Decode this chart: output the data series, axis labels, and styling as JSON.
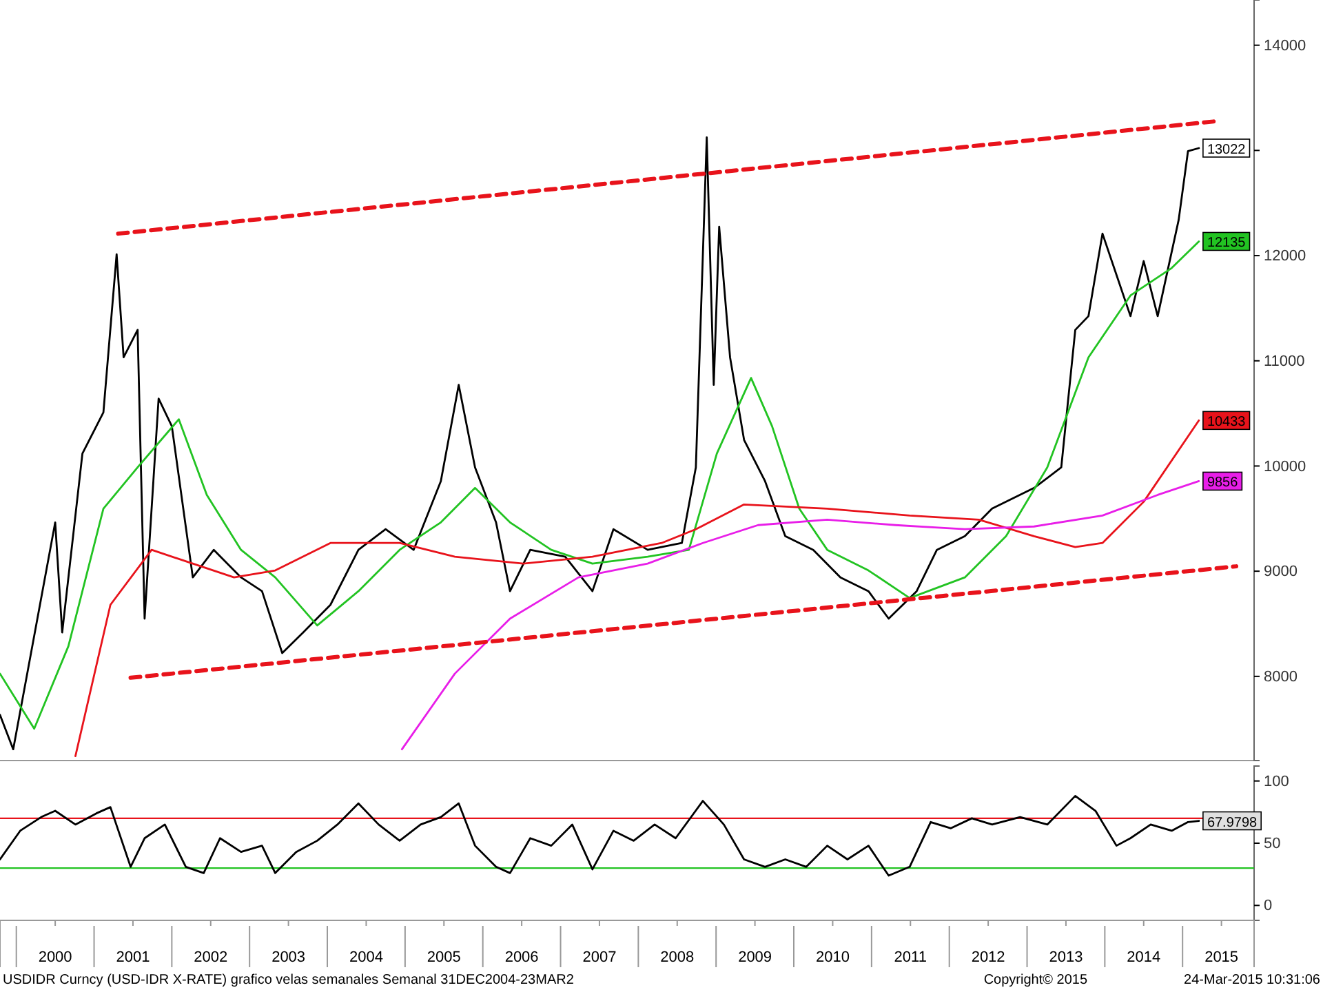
{
  "chart_data": [
    {
      "type": "line",
      "xlim": [
        1999.79,
        2015.92
      ],
      "ylim": [
        7200,
        14430
      ],
      "yticks": [
        8000,
        9000,
        10000,
        11000,
        12000,
        {
          "value": 13000,
          "label": null
        },
        14000
      ],
      "series": [
        {
          "color": "#000000",
          "x": [
            1999.79,
            1999.96,
            2000.5,
            2000.59,
            2000.85,
            2001.12,
            2001.29,
            2001.38,
            2001.56,
            2001.65,
            2001.83,
            2002.0,
            2002.27,
            2002.54,
            2002.89,
            2003.16,
            2003.42,
            2003.69,
            2004.04,
            2004.4,
            2004.75,
            2005.11,
            2005.46,
            2005.69,
            2005.9,
            2006.17,
            2006.35,
            2006.61,
            2007.06,
            2007.41,
            2007.68,
            2008.12,
            2008.56,
            2008.74,
            2008.88,
            2008.97,
            2009.04,
            2009.18,
            2009.36,
            2009.63,
            2009.89,
            2010.25,
            2010.6,
            2010.96,
            2011.22,
            2011.58,
            2011.84,
            2012.2,
            2012.55,
            2013.09,
            2013.44,
            2013.62,
            2013.79,
            2013.97,
            2014.15,
            2014.33,
            2014.5,
            2014.68,
            2014.95,
            2015.07,
            2015.21
          ],
          "values": [
            7634,
            7307,
            9464,
            8418,
            10118,
            10510,
            12013,
            11033,
            11294,
            8549,
            10640,
            10379,
            8941,
            9203,
            8941,
            8810,
            8222,
            8418,
            8680,
            9203,
            9399,
            9203,
            9856,
            10771,
            9987,
            9464,
            8810,
            9203,
            9137,
            8810,
            9399,
            9203,
            9268,
            9987,
            13124,
            10771,
            12275,
            11033,
            10248,
            9856,
            9333,
            9203,
            8941,
            8810,
            8549,
            8810,
            9203,
            9333,
            9595,
            9791,
            9987,
            11294,
            11425,
            12209,
            11817,
            11425,
            11948,
            11425,
            12340,
            12994,
            13022
          ],
          "value_labels": [
            null,
            null,
            null,
            null,
            null,
            null,
            null,
            null,
            null,
            null,
            null,
            null,
            null,
            null,
            null,
            null,
            null,
            null,
            null,
            null,
            null,
            null,
            null,
            null,
            null,
            null,
            null,
            null,
            null,
            null,
            null,
            null,
            null,
            null,
            null,
            null,
            null,
            null,
            null,
            null,
            null,
            null,
            null,
            null,
            null,
            null,
            null,
            null,
            null,
            null,
            null,
            null,
            null,
            null,
            null,
            null,
            null,
            null,
            null,
            null,
            "13022"
          ]
        },
        {
          "color": "#22c322",
          "x": [
            1999.79,
            2000.23,
            2000.67,
            2001.12,
            2001.56,
            2002.09,
            2002.45,
            2002.89,
            2003.33,
            2003.87,
            2004.4,
            2004.93,
            2005.46,
            2005.9,
            2006.35,
            2006.88,
            2007.41,
            2008.12,
            2008.65,
            2009.01,
            2009.45,
            2009.72,
            2010.07,
            2010.43,
            2010.96,
            2011.49,
            2012.2,
            2012.73,
            2013.26,
            2013.79,
            2014.33,
            2014.86,
            2015.21
          ],
          "values": [
            8026,
            7503,
            8288,
            9595,
            9987,
            10444,
            9725,
            9203,
            8941,
            8484,
            8810,
            9203,
            9464,
            9791,
            9464,
            9203,
            9072,
            9137,
            9203,
            10118,
            10837,
            10379,
            9595,
            9203,
            9007,
            8745,
            8941,
            9333,
            9987,
            11033,
            11621,
            11882,
            12135
          ],
          "value_labels": [
            null,
            null,
            null,
            null,
            null,
            null,
            null,
            null,
            null,
            null,
            null,
            null,
            null,
            null,
            null,
            null,
            null,
            null,
            null,
            null,
            null,
            null,
            null,
            null,
            null,
            null,
            null,
            null,
            null,
            null,
            null,
            null,
            "12135"
          ]
        },
        {
          "color": "#e8131b",
          "x": [
            2000.76,
            2001.21,
            2001.74,
            2002.27,
            2002.8,
            2003.33,
            2004.04,
            2004.93,
            2005.64,
            2006.52,
            2007.41,
            2008.3,
            2008.74,
            2009.36,
            2010.43,
            2011.49,
            2012.38,
            2013.09,
            2013.62,
            2013.97,
            2014.5,
            2015.21
          ],
          "values": [
            7242,
            8680,
            9203,
            9072,
            8941,
            9007,
            9268,
            9268,
            9137,
            9072,
            9137,
            9268,
            9399,
            9634,
            9595,
            9529,
            9490,
            9333,
            9229,
            9268,
            9660,
            10433
          ],
          "value_labels": [
            null,
            null,
            null,
            null,
            null,
            null,
            null,
            null,
            null,
            null,
            null,
            null,
            null,
            null,
            null,
            null,
            null,
            null,
            null,
            null,
            null,
            "10433"
          ]
        },
        {
          "color": "#e81ee8",
          "x": [
            2004.96,
            2005.64,
            2006.35,
            2007.23,
            2008.12,
            2008.83,
            2009.54,
            2010.43,
            2011.31,
            2012.2,
            2013.09,
            2013.97,
            2014.68,
            2015.21
          ],
          "values": [
            7307,
            8026,
            8549,
            8941,
            9072,
            9268,
            9438,
            9490,
            9438,
            9399,
            9425,
            9529,
            9725,
            9856
          ],
          "value_labels": [
            null,
            null,
            null,
            null,
            null,
            null,
            null,
            null,
            null,
            null,
            null,
            null,
            null,
            "9856"
          ]
        },
        {
          "color": "#e8131b",
          "line_style": "dashed",
          "x": [
            2001.31,
            2015.48
          ],
          "values": [
            12209,
            13281
          ]
        },
        {
          "color": "#e8131b",
          "line_style": "dashed",
          "x": [
            2001.47,
            2015.69
          ],
          "values": [
            7987,
            9046
          ]
        }
      ],
      "tick_labels": "y"
    },
    {
      "type": "line",
      "title": "USDIDR Curncy (USD-IDR X-RATE) grafico velas semanales  Semanal 31DEC2004-23MAR2",
      "xlim": [
        1999.79,
        2015.92
      ],
      "ylim": [
        -12,
        112
      ],
      "yticks": [
        0,
        50,
        100
      ],
      "xticks": [
        {
          "value": 2000.5,
          "label": "2000"
        },
        {
          "value": 2001.5,
          "label": "2001"
        },
        {
          "value": 2002.5,
          "label": "2002"
        },
        {
          "value": 2003.5,
          "label": "2003"
        },
        {
          "value": 2004.5,
          "label": "2004"
        },
        {
          "value": 2005.5,
          "label": "2005"
        },
        {
          "value": 2006.5,
          "label": "2006"
        },
        {
          "value": 2007.5,
          "label": "2007"
        },
        {
          "value": 2008.5,
          "label": "2008"
        },
        {
          "value": 2009.5,
          "label": "2009"
        },
        {
          "value": 2010.5,
          "label": "2010"
        },
        {
          "value": 2011.5,
          "label": "2011"
        },
        {
          "value": 2012.5,
          "label": "2012"
        },
        {
          "value": 2013.5,
          "label": "2013"
        },
        {
          "value": 2014.5,
          "label": "2014"
        },
        {
          "value": 2015.5,
          "label": "2015"
        }
      ],
      "series": [
        {
          "color": "#000000",
          "x": [
            1999.79,
            2000.05,
            2000.32,
            2000.5,
            2000.76,
            2001.03,
            2001.21,
            2001.47,
            2001.65,
            2001.91,
            2002.18,
            2002.41,
            2002.62,
            2002.89,
            2003.16,
            2003.33,
            2003.6,
            2003.87,
            2004.13,
            2004.4,
            2004.66,
            2004.93,
            2005.2,
            2005.46,
            2005.69,
            2005.9,
            2006.17,
            2006.35,
            2006.61,
            2006.88,
            2007.15,
            2007.41,
            2007.68,
            2007.94,
            2008.21,
            2008.48,
            2008.83,
            2009.1,
            2009.36,
            2009.63,
            2009.89,
            2010.16,
            2010.43,
            2010.69,
            2010.96,
            2011.22,
            2011.49,
            2011.76,
            2012.02,
            2012.29,
            2012.55,
            2012.91,
            2013.26,
            2013.62,
            2013.88,
            2014.15,
            2014.33,
            2014.59,
            2014.86,
            2015.07,
            2015.21
          ],
          "values": [
            37,
            60,
            71,
            76,
            65,
            74,
            79,
            31,
            54,
            65,
            31,
            26,
            54,
            43,
            48,
            26,
            43,
            52,
            65,
            82,
            65,
            52,
            65,
            71,
            82,
            48,
            31,
            26,
            54,
            48,
            65,
            29,
            60,
            52,
            65,
            54,
            84,
            65,
            37,
            31,
            37,
            31,
            48,
            37,
            48,
            24,
            31,
            67,
            62,
            70,
            65,
            71,
            65,
            88,
            76,
            48,
            54,
            65,
            60,
            67,
            67.9798
          ],
          "value_labels": [
            null,
            null,
            null,
            null,
            null,
            null,
            null,
            null,
            null,
            null,
            null,
            null,
            null,
            null,
            null,
            null,
            null,
            null,
            null,
            null,
            null,
            null,
            null,
            null,
            null,
            null,
            null,
            null,
            null,
            null,
            null,
            null,
            null,
            null,
            null,
            null,
            null,
            null,
            null,
            null,
            null,
            null,
            null,
            null,
            null,
            null,
            null,
            null,
            null,
            null,
            null,
            null,
            null,
            null,
            null,
            null,
            null,
            null,
            null,
            null,
            "67.9798"
          ]
        }
      ],
      "ref_lines": [
        {
          "axis": "y",
          "value": 70,
          "color": "#e8131b"
        },
        {
          "axis": "y",
          "value": 30,
          "color": "#22c322"
        }
      ],
      "annotations": [
        "Copyright© 2015",
        "24-Mar-2015 10:31:06"
      ]
    }
  ]
}
